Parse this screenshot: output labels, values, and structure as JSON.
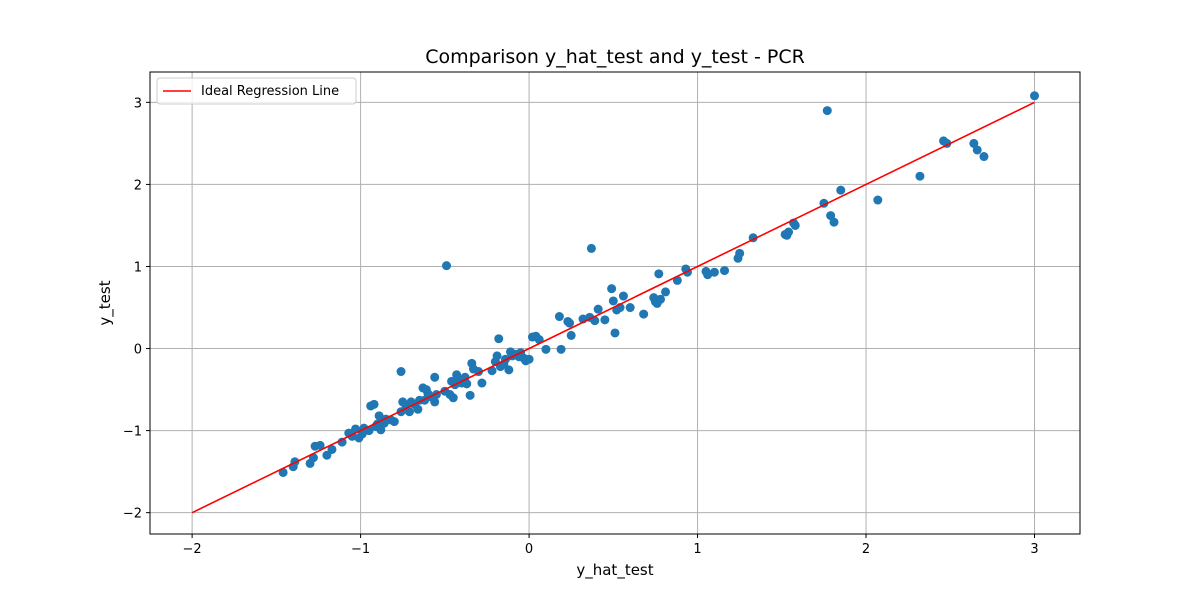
{
  "chart_data": {
    "type": "scatter",
    "title": "Comparison y_hat_test and y_test - PCR",
    "xlabel": "y_hat_test",
    "ylabel": "y_test",
    "xlim": [
      -2.25,
      3.27
    ],
    "ylim": [
      -2.26,
      3.37
    ],
    "x_ticks": [
      -2,
      -1,
      0,
      1,
      2,
      3
    ],
    "y_ticks": [
      -2,
      -1,
      0,
      1,
      2,
      3
    ],
    "x_tick_labels": [
      "−2",
      "−1",
      "0",
      "1",
      "2",
      "3"
    ],
    "y_tick_labels": [
      "−2",
      "−1",
      "0",
      "1",
      "2",
      "3"
    ],
    "grid": true,
    "legend": {
      "position": "top-left",
      "entries": [
        "Ideal Regression Line"
      ]
    },
    "colors": {
      "points": "#1f77b4",
      "line": "#ff0000",
      "grid": "#b0b0b0"
    },
    "ideal_line": {
      "name": "Ideal Regression Line",
      "x": [
        -2,
        3
      ],
      "y": [
        -2,
        3
      ]
    },
    "points": [
      [
        -1.46,
        -1.51
      ],
      [
        -1.4,
        -1.44
      ],
      [
        -1.39,
        -1.38
      ],
      [
        -1.3,
        -1.4
      ],
      [
        -1.28,
        -1.33
      ],
      [
        -1.27,
        -1.19
      ],
      [
        -1.24,
        -1.18
      ],
      [
        -1.2,
        -1.3
      ],
      [
        -1.17,
        -1.23
      ],
      [
        -1.11,
        -1.14
      ],
      [
        -1.07,
        -1.03
      ],
      [
        -1.05,
        -1.07
      ],
      [
        -1.03,
        -0.98
      ],
      [
        -1.01,
        -1.09
      ],
      [
        -0.99,
        -1.04
      ],
      [
        -0.98,
        -0.97
      ],
      [
        -0.95,
        -1.0
      ],
      [
        -0.94,
        -0.7
      ],
      [
        -0.92,
        -0.68
      ],
      [
        -0.91,
        -0.95
      ],
      [
        -0.9,
        -0.92
      ],
      [
        -0.89,
        -0.82
      ],
      [
        -0.88,
        -0.99
      ],
      [
        -0.86,
        -0.91
      ],
      [
        -0.85,
        -0.86
      ],
      [
        -0.82,
        -0.87
      ],
      [
        -0.8,
        -0.89
      ],
      [
        -0.76,
        -0.77
      ],
      [
        -0.76,
        -0.28
      ],
      [
        -0.75,
        -0.65
      ],
      [
        -0.73,
        -0.7
      ],
      [
        -0.71,
        -0.77
      ],
      [
        -0.7,
        -0.65
      ],
      [
        -0.68,
        -0.68
      ],
      [
        -0.66,
        -0.74
      ],
      [
        -0.65,
        -0.63
      ],
      [
        -0.63,
        -0.48
      ],
      [
        -0.62,
        -0.63
      ],
      [
        -0.61,
        -0.5
      ],
      [
        -0.6,
        -0.55
      ],
      [
        -0.58,
        -0.59
      ],
      [
        -0.56,
        -0.35
      ],
      [
        -0.56,
        -0.65
      ],
      [
        -0.55,
        -0.56
      ],
      [
        -0.5,
        -0.52
      ],
      [
        -0.49,
        1.01
      ],
      [
        -0.47,
        -0.56
      ],
      [
        -0.46,
        -0.4
      ],
      [
        -0.45,
        -0.6
      ],
      [
        -0.44,
        -0.44
      ],
      [
        -0.43,
        -0.32
      ],
      [
        -0.42,
        -0.37
      ],
      [
        -0.4,
        -0.42
      ],
      [
        -0.38,
        -0.35
      ],
      [
        -0.37,
        -0.43
      ],
      [
        -0.35,
        -0.57
      ],
      [
        -0.34,
        -0.18
      ],
      [
        -0.33,
        -0.25
      ],
      [
        -0.3,
        -0.28
      ],
      [
        -0.28,
        -0.42
      ],
      [
        -0.22,
        -0.27
      ],
      [
        -0.2,
        -0.16
      ],
      [
        -0.19,
        -0.09
      ],
      [
        -0.18,
        0.12
      ],
      [
        -0.17,
        -0.22
      ],
      [
        -0.15,
        -0.19
      ],
      [
        -0.14,
        -0.13
      ],
      [
        -0.12,
        -0.26
      ],
      [
        -0.11,
        -0.04
      ],
      [
        -0.1,
        -0.09
      ],
      [
        -0.08,
        -0.07
      ],
      [
        -0.06,
        -0.1
      ],
      [
        -0.05,
        -0.05
      ],
      [
        -0.03,
        -0.12
      ],
      [
        -0.02,
        -0.15
      ],
      [
        0.0,
        -0.13
      ],
      [
        0.02,
        0.14
      ],
      [
        0.04,
        0.15
      ],
      [
        0.06,
        0.11
      ],
      [
        0.1,
        -0.01
      ],
      [
        0.18,
        0.39
      ],
      [
        0.19,
        -0.01
      ],
      [
        0.23,
        0.33
      ],
      [
        0.24,
        0.31
      ],
      [
        0.25,
        0.16
      ],
      [
        0.32,
        0.36
      ],
      [
        0.36,
        0.38
      ],
      [
        0.37,
        1.22
      ],
      [
        0.39,
        0.34
      ],
      [
        0.41,
        0.48
      ],
      [
        0.45,
        0.35
      ],
      [
        0.49,
        0.73
      ],
      [
        0.5,
        0.58
      ],
      [
        0.51,
        0.19
      ],
      [
        0.52,
        0.47
      ],
      [
        0.54,
        0.5
      ],
      [
        0.56,
        0.64
      ],
      [
        0.6,
        0.5
      ],
      [
        0.68,
        0.42
      ],
      [
        0.74,
        0.62
      ],
      [
        0.75,
        0.57
      ],
      [
        0.76,
        0.55
      ],
      [
        0.77,
        0.91
      ],
      [
        0.78,
        0.6
      ],
      [
        0.81,
        0.69
      ],
      [
        0.88,
        0.83
      ],
      [
        0.93,
        0.97
      ],
      [
        0.94,
        0.93
      ],
      [
        1.05,
        0.94
      ],
      [
        1.06,
        0.9
      ],
      [
        1.1,
        0.93
      ],
      [
        1.16,
        0.95
      ],
      [
        1.24,
        1.1
      ],
      [
        1.25,
        1.16
      ],
      [
        1.33,
        1.35
      ],
      [
        1.52,
        1.39
      ],
      [
        1.53,
        1.38
      ],
      [
        1.54,
        1.42
      ],
      [
        1.57,
        1.53
      ],
      [
        1.58,
        1.5
      ],
      [
        1.75,
        1.77
      ],
      [
        1.77,
        2.9
      ],
      [
        1.79,
        1.62
      ],
      [
        1.81,
        1.54
      ],
      [
        1.85,
        1.93
      ],
      [
        2.07,
        1.81
      ],
      [
        2.32,
        2.1
      ],
      [
        2.46,
        2.53
      ],
      [
        2.48,
        2.5
      ],
      [
        2.64,
        2.5
      ],
      [
        2.66,
        2.42
      ],
      [
        2.7,
        2.34
      ],
      [
        3.0,
        3.08
      ]
    ]
  }
}
